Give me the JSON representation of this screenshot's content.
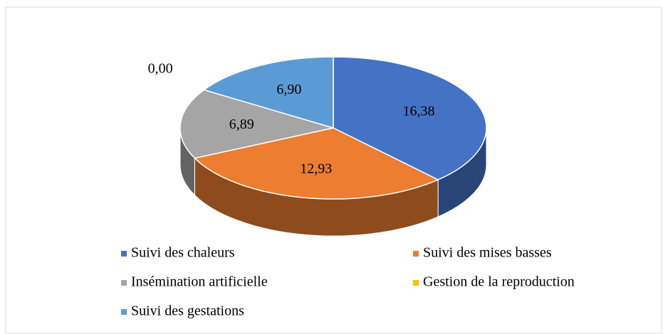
{
  "chart_data": {
    "type": "pie",
    "categories": [
      "Suivi des chaleurs",
      "Suivi des mises basses",
      "Insémination artificielle",
      "Gestion de la reproduction",
      "Suivi des gestations"
    ],
    "values": [
      16.38,
      12.93,
      6.89,
      0.0,
      6.9
    ],
    "value_labels": [
      "16,38",
      "12,93",
      "6,89",
      "0,00",
      "6,90"
    ],
    "colors": [
      "#4472c4",
      "#ed7d31",
      "#a5a5a5",
      "#ffc000",
      "#5b9bd5"
    ],
    "legend": "bottom"
  }
}
